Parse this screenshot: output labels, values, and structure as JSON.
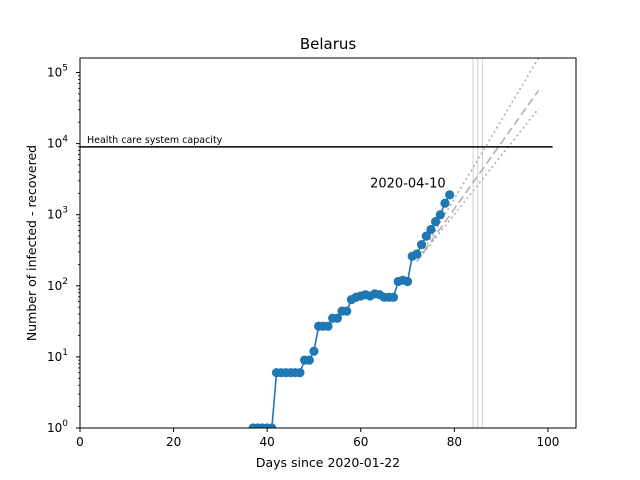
{
  "chart_data": {
    "type": "line",
    "title": "Belarus",
    "xlabel": "Days since 2020-01-22",
    "ylabel": "Number of infected - recovered",
    "xlim": [
      0,
      106
    ],
    "ylim": [
      1,
      160000
    ],
    "yscale": "log",
    "grid": false,
    "x_ticks": [
      0,
      20,
      40,
      60,
      80,
      100
    ],
    "x_tick_labels": [
      "0",
      "20",
      "40",
      "60",
      "80",
      "100"
    ],
    "y_ticks": [
      1,
      10,
      100,
      1000,
      10000,
      100000
    ],
    "y_tick_labels": [
      {
        "base": "10",
        "exp": "0"
      },
      {
        "base": "10",
        "exp": "1"
      },
      {
        "base": "10",
        "exp": "2"
      },
      {
        "base": "10",
        "exp": "3"
      },
      {
        "base": "10",
        "exp": "4"
      },
      {
        "base": "10",
        "exp": "5"
      }
    ],
    "series": [
      {
        "color": "#1f77b4",
        "marker": "circle",
        "x": [
          37,
          38,
          39,
          40,
          41,
          42,
          43,
          44,
          45,
          46,
          47,
          48,
          49,
          50,
          51,
          52,
          53,
          54,
          55,
          56,
          57,
          58,
          59,
          60,
          61,
          62,
          63,
          64,
          65,
          66,
          67,
          68,
          69,
          70,
          71,
          72,
          73,
          74,
          75,
          76,
          77,
          78,
          79
        ],
        "y": [
          1,
          1,
          1,
          1,
          1,
          6,
          6,
          6,
          6,
          6,
          6,
          9,
          9,
          12,
          27,
          27,
          27,
          35,
          35,
          44,
          44,
          64,
          69,
          72,
          75,
          72,
          77,
          75,
          69,
          69,
          69,
          115,
          120,
          115,
          260,
          280,
          380,
          500,
          620,
          800,
          1000,
          1450,
          1900
        ]
      }
    ],
    "projections": [
      {
        "style": "dotted",
        "color": "#b0b0b0",
        "x": [
          72,
          98
        ],
        "y": [
          220,
          160000
        ]
      },
      {
        "style": "dashed",
        "color": "#b0b0b0",
        "x": [
          72,
          98
        ],
        "y": [
          220,
          56000
        ]
      },
      {
        "style": "dotted",
        "color": "#b0b0b0",
        "x": [
          72,
          98
        ],
        "y": [
          220,
          31000
        ]
      }
    ],
    "vertical_markers": {
      "color": "#d0d0d0",
      "x": [
        84,
        85,
        86
      ]
    },
    "capacity_line": {
      "y": 9000,
      "x": [
        0,
        101
      ],
      "color": "#000000",
      "label": "Health care system capacity"
    },
    "annotations": [
      {
        "text": "2020-04-10",
        "x": 62,
        "y": 2400
      }
    ]
  }
}
